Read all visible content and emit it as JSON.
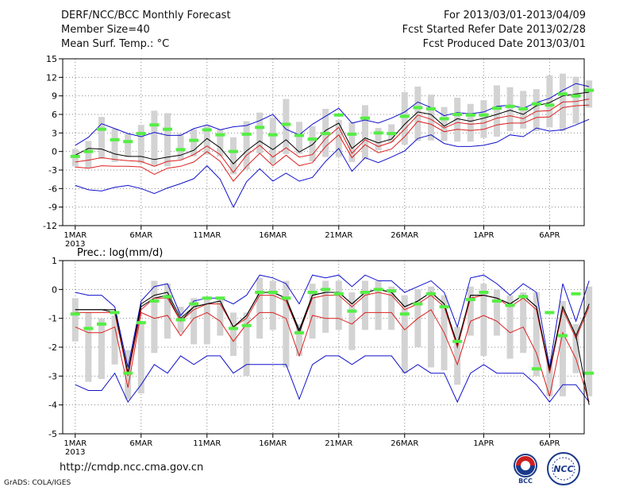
{
  "header": {
    "title": "DERF/NCC/BCC Monthly Forecast",
    "member": "Member Size=40",
    "variable": "Mean Surf. Temp.: °C",
    "period": "For 2013/03/01-2013/04/09",
    "started": "Fcst Started Refer Date 2013/02/28",
    "produced": "Fcst Produced Date 2013/03/01"
  },
  "footer": {
    "url": "http://cmdp.ncc.cma.gov.cn",
    "credit": "GrADS: COLA/IGES",
    "logo1_text": "BCC",
    "logo2_text": "NCC"
  },
  "colors": {
    "bar": "#d3d3d3",
    "marker": "#55ee44",
    "mean": "#000000",
    "inner": "#dd2020",
    "outer": "#1010cc",
    "grid": "#888888"
  },
  "chart_data": [
    {
      "type": "line",
      "title": "Mean Surf. Temp.: °C",
      "xlabel": "",
      "ylabel": "",
      "ylim": [
        -12,
        15
      ],
      "yticks": [
        -12,
        -9,
        -6,
        -3,
        0,
        3,
        6,
        9,
        12,
        15
      ],
      "xticks": [
        {
          "day": 1,
          "label": "1MAR",
          "sublabel": "2013"
        },
        {
          "day": 6,
          "label": "6MAR"
        },
        {
          "day": 11,
          "label": "11MAR"
        },
        {
          "day": 16,
          "label": "16MAR"
        },
        {
          "day": 21,
          "label": "21MAR"
        },
        {
          "day": 26,
          "label": "26MAR"
        },
        {
          "day": 32,
          "label": "1APR"
        },
        {
          "day": 37,
          "label": "6APR"
        }
      ],
      "x": [
        1,
        2,
        3,
        4,
        5,
        6,
        7,
        8,
        9,
        10,
        11,
        12,
        13,
        14,
        15,
        16,
        17,
        18,
        19,
        20,
        21,
        22,
        23,
        24,
        25,
        26,
        27,
        28,
        29,
        30,
        31,
        32,
        33,
        34,
        35,
        36,
        37,
        38,
        39,
        40
      ],
      "series": [
        {
          "name": "ensemble max",
          "values": [
            1.0,
            2.3,
            4.5,
            3.7,
            2.9,
            2.4,
            3.1,
            2.6,
            2.6,
            3.7,
            4.3,
            3.5,
            4.0,
            4.2,
            5.0,
            6.0,
            3.6,
            2.7,
            4.4,
            5.7,
            7.0,
            4.6,
            5.1,
            4.6,
            5.4,
            6.4,
            8.0,
            7.1,
            5.8,
            6.3,
            6.1,
            6.4,
            7.3,
            7.5,
            7.0,
            7.9,
            8.6,
            9.9,
            11.0,
            10.5
          ]
        },
        {
          "name": "upper",
          "values": [
            -0.6,
            0.5,
            0.4,
            -0.4,
            -0.8,
            -0.8,
            -1.3,
            -0.9,
            -0.6,
            0.2,
            2.1,
            0.6,
            -2.0,
            0.1,
            1.7,
            0.3,
            1.9,
            -0.1,
            1.1,
            3.4,
            4.6,
            0.5,
            2.2,
            1.4,
            2.0,
            4.4,
            6.4,
            6.0,
            4.1,
            5.3,
            4.9,
            5.4,
            6.0,
            6.7,
            6.0,
            7.4,
            7.9,
            9.0,
            9.3,
            9.6
          ]
        },
        {
          "name": "ensemble mean",
          "values": [
            -1.7,
            -1.4,
            -1.0,
            -1.3,
            -1.5,
            -1.6,
            -2.4,
            -1.6,
            -1.4,
            -0.5,
            0.9,
            -0.5,
            -3.4,
            -0.6,
            1.0,
            -0.9,
            0.6,
            -0.9,
            -0.5,
            2.1,
            3.9,
            -0.3,
            1.9,
            0.8,
            1.5,
            3.6,
            5.9,
            5.2,
            3.8,
            4.7,
            4.4,
            4.6,
            5.4,
            5.8,
            5.3,
            6.5,
            6.6,
            8.0,
            8.1,
            8.5
          ]
        },
        {
          "name": "lower",
          "values": [
            -2.5,
            -2.7,
            -2.3,
            -2.4,
            -2.4,
            -2.5,
            -3.7,
            -2.7,
            -2.4,
            -1.7,
            0.0,
            -1.6,
            -4.8,
            -2.4,
            -0.3,
            -2.3,
            -0.6,
            -2.3,
            -1.8,
            0.8,
            2.7,
            -1.0,
            1.1,
            -0.2,
            0.4,
            2.4,
            4.9,
            4.4,
            3.2,
            3.6,
            3.4,
            3.6,
            4.3,
            4.6,
            4.6,
            5.5,
            5.6,
            7.1,
            7.4,
            7.5
          ]
        },
        {
          "name": "ensemble min",
          "values": [
            -5.5,
            -6.2,
            -6.4,
            -5.8,
            -5.5,
            -6.0,
            -6.8,
            -5.9,
            -5.2,
            -4.4,
            -2.3,
            -4.5,
            -9.0,
            -4.9,
            -2.8,
            -4.8,
            -3.5,
            -4.8,
            -4.2,
            -1.6,
            0.5,
            -3.2,
            -1.0,
            -1.8,
            -0.9,
            0.1,
            2.1,
            2.7,
            1.3,
            0.8,
            0.8,
            1.0,
            1.5,
            2.7,
            2.4,
            3.8,
            3.3,
            3.5,
            4.3,
            5.2
          ]
        }
      ],
      "bars": [
        [
          -2.4,
          0.4
        ],
        [
          -2.7,
          1.7
        ],
        [
          -1.2,
          5.6
        ],
        [
          -1.7,
          3.7
        ],
        [
          -0.8,
          2.9
        ],
        [
          -1.9,
          4.3
        ],
        [
          -2.4,
          6.6
        ],
        [
          -2.4,
          6.2
        ],
        [
          -1.3,
          2.9
        ],
        [
          -0.8,
          3.6
        ],
        [
          -0.5,
          4.2
        ],
        [
          -0.8,
          3.6
        ],
        [
          -3.7,
          2.3
        ],
        [
          -2.9,
          4.9
        ],
        [
          -0.3,
          6.3
        ],
        [
          -2.0,
          5.5
        ],
        [
          -0.4,
          8.5
        ],
        [
          -0.4,
          4.8
        ],
        [
          -1.6,
          4.1
        ],
        [
          -0.9,
          6.9
        ],
        [
          -0.9,
          5.1
        ],
        [
          -1.7,
          4.7
        ],
        [
          -1.3,
          7.5
        ],
        [
          0.2,
          3.8
        ],
        [
          1.5,
          4.4
        ],
        [
          1.1,
          9.6
        ],
        [
          1.7,
          10.5
        ],
        [
          1.8,
          9.2
        ],
        [
          1.7,
          7.2
        ],
        [
          1.6,
          8.7
        ],
        [
          1.6,
          7.7
        ],
        [
          2.2,
          8.3
        ],
        [
          2.4,
          10.7
        ],
        [
          3.3,
          10.4
        ],
        [
          3.7,
          9.8
        ],
        [
          3.3,
          10.1
        ],
        [
          3.9,
          12.3
        ],
        [
          3.3,
          12.6
        ],
        [
          4.5,
          12.1
        ],
        [
          7.1,
          11.5
        ]
      ],
      "markers": [
        -0.8,
        0.0,
        3.6,
        1.9,
        1.6,
        2.9,
        4.3,
        3.6,
        0.3,
        1.8,
        3.5,
        2.7,
        0.0,
        2.8,
        3.9,
        2.7,
        4.4,
        2.6,
        2.0,
        2.9,
        5.9,
        2.8,
        5.4,
        3.0,
        2.9,
        5.7,
        7.1,
        6.9,
        5.3,
        6.0,
        5.9,
        5.9,
        7.0,
        7.3,
        6.9,
        7.7,
        7.5,
        9.3,
        9.0,
        9.9
      ]
    },
    {
      "type": "line",
      "title": "Prec.: log(mm/d)",
      "xlabel": "",
      "ylabel": "",
      "ylim": [
        -5,
        1
      ],
      "yticks": [
        -5,
        -4,
        -3,
        -2,
        -1,
        0,
        1
      ],
      "xticks": [
        {
          "day": 1,
          "label": "1MAR",
          "sublabel": "2013"
        },
        {
          "day": 6,
          "label": "6MAR"
        },
        {
          "day": 11,
          "label": "11MAR"
        },
        {
          "day": 16,
          "label": "16MAR"
        },
        {
          "day": 21,
          "label": "21MAR"
        },
        {
          "day": 26,
          "label": "26MAR"
        },
        {
          "day": 32,
          "label": "1APR"
        },
        {
          "day": 37,
          "label": "6APR"
        }
      ],
      "x": [
        1,
        2,
        3,
        4,
        5,
        6,
        7,
        8,
        9,
        10,
        11,
        12,
        13,
        14,
        15,
        16,
        17,
        18,
        19,
        20,
        21,
        22,
        23,
        24,
        25,
        26,
        27,
        28,
        29,
        30,
        31,
        32,
        33,
        34,
        35,
        36,
        37,
        38,
        39,
        40
      ],
      "series": [
        {
          "name": "ensemble max",
          "values": [
            -0.1,
            -0.2,
            -0.2,
            -0.6,
            -2.7,
            -0.4,
            0.1,
            0.2,
            -0.9,
            -0.4,
            -0.3,
            -0.3,
            -0.5,
            -0.2,
            0.5,
            0.4,
            0.2,
            -0.5,
            0.5,
            0.4,
            0.5,
            0.1,
            0.5,
            0.3,
            0.3,
            -0.1,
            0.1,
            0.3,
            -0.1,
            -1.3,
            0.4,
            0.5,
            0.2,
            -0.2,
            0.2,
            -0.1,
            -2.7,
            0.2,
            -1.1,
            0.3
          ]
        },
        {
          "name": "upper",
          "values": [
            -0.7,
            -0.7,
            -0.7,
            -0.8,
            -2.9,
            -0.6,
            -0.3,
            -0.2,
            -1.1,
            -0.6,
            -0.5,
            -0.4,
            -1.3,
            -0.9,
            -0.1,
            -0.1,
            -0.3,
            -1.4,
            -0.2,
            -0.1,
            -0.1,
            -0.5,
            -0.1,
            0.0,
            -0.1,
            -0.6,
            -0.4,
            -0.1,
            -0.5,
            -2.0,
            -0.2,
            -0.2,
            -0.3,
            -0.5,
            -0.2,
            -0.6,
            -2.8,
            -0.6,
            -1.6,
            -0.5
          ]
        },
        {
          "name": "ensemble mean",
          "values": [
            -0.8,
            -0.8,
            -0.8,
            -0.8,
            -3.0,
            -0.7,
            -0.3,
            -0.3,
            -1.1,
            -0.7,
            -0.5,
            -0.5,
            -1.3,
            -1.0,
            -0.2,
            -0.2,
            -0.4,
            -1.5,
            -0.3,
            -0.2,
            -0.2,
            -0.6,
            -0.2,
            -0.1,
            -0.2,
            -0.7,
            -0.5,
            -0.2,
            -0.6,
            -2.0,
            -0.3,
            -0.2,
            -0.3,
            -0.6,
            -0.3,
            -0.7,
            -2.9,
            -0.7,
            -1.7,
            -0.6
          ]
        },
        {
          "name": "lower",
          "values": [
            -1.3,
            -1.5,
            -1.5,
            -1.3,
            -3.4,
            -0.8,
            -1.0,
            -0.9,
            -1.6,
            -1.0,
            -0.8,
            -1.1,
            -1.8,
            -1.2,
            -0.8,
            -0.8,
            -1.0,
            -2.3,
            -0.9,
            -1.0,
            -1.0,
            -1.2,
            -0.8,
            -0.8,
            -0.8,
            -1.4,
            -1.0,
            -0.7,
            -1.5,
            -2.6,
            -1.1,
            -0.9,
            -1.1,
            -1.5,
            -1.3,
            -2.2,
            -3.7,
            -1.5,
            -2.4,
            -3.9
          ]
        },
        {
          "name": "ensemble min",
          "values": [
            -3.3,
            -3.5,
            -3.5,
            -2.9,
            -3.9,
            -3.3,
            -2.6,
            -2.9,
            -2.3,
            -2.6,
            -2.3,
            -2.3,
            -2.9,
            -2.6,
            -2.6,
            -2.6,
            -2.6,
            -3.8,
            -2.6,
            -2.3,
            -2.3,
            -2.6,
            -2.3,
            -2.3,
            -2.3,
            -2.9,
            -2.6,
            -2.9,
            -2.9,
            -3.9,
            -2.9,
            -2.6,
            -2.9,
            -2.9,
            -2.9,
            -3.3,
            -3.9,
            -3.3,
            -3.3,
            -3.9
          ]
        },
        {
          "name": "reference",
          "values": [
            -0.7,
            -0.7,
            -0.7,
            -0.7,
            -2.9,
            -0.5,
            -0.2,
            -0.1,
            -1.0,
            -0.6,
            -0.5,
            -0.4,
            -1.3,
            -0.9,
            -0.1,
            -0.1,
            -0.3,
            -1.5,
            -0.2,
            -0.1,
            -0.1,
            -0.5,
            -0.1,
            0.0,
            -0.1,
            -0.6,
            -0.4,
            -0.1,
            -0.5,
            -1.9,
            -0.2,
            -0.2,
            -0.3,
            -0.5,
            -0.2,
            -0.6,
            -2.8,
            -0.6,
            -1.6,
            -4.0
          ]
        }
      ],
      "bars": [
        [
          -1.8,
          -0.3
        ],
        [
          -3.2,
          -0.8
        ],
        [
          -3.1,
          -1.0
        ],
        [
          -2.6,
          -0.9
        ],
        [
          -3.8,
          -2.1
        ],
        [
          -3.6,
          -1.1
        ],
        [
          -2.2,
          0.3
        ],
        [
          -1.7,
          0.2
        ],
        [
          -1.5,
          -0.6
        ],
        [
          -1.9,
          -0.3
        ],
        [
          -1.9,
          -0.3
        ],
        [
          -1.6,
          -0.3
        ],
        [
          -2.3,
          -0.8
        ],
        [
          -3.0,
          -0.8
        ],
        [
          -1.7,
          0.4
        ],
        [
          -1.4,
          0.3
        ],
        [
          -2.7,
          0.3
        ],
        [
          -2.3,
          -1.2
        ],
        [
          -1.7,
          0.2
        ],
        [
          -1.5,
          0.3
        ],
        [
          -1.4,
          0.3
        ],
        [
          -2.1,
          -0.1
        ],
        [
          -1.4,
          0.3
        ],
        [
          -1.4,
          0.3
        ],
        [
          -1.4,
          0.1
        ],
        [
          -2.9,
          -0.2
        ],
        [
          -2.0,
          0.0
        ],
        [
          -2.7,
          0.1
        ],
        [
          -2.8,
          -0.2
        ],
        [
          -3.3,
          -1.3
        ],
        [
          -1.6,
          0.1
        ],
        [
          -2.3,
          0.2
        ],
        [
          -1.6,
          0.0
        ],
        [
          -2.4,
          -0.2
        ],
        [
          -2.2,
          -0.1
        ],
        [
          -3.0,
          -0.1
        ],
        [
          -3.7,
          -2.4
        ],
        [
          -3.7,
          -0.4
        ],
        [
          -2.9,
          -1.2
        ],
        [
          -3.7,
          0.1
        ]
      ],
      "markers": [
        -0.85,
        -1.35,
        -1.2,
        -0.8,
        -2.9,
        -1.15,
        -0.4,
        -0.25,
        -1.05,
        -0.5,
        -0.3,
        -0.3,
        -1.35,
        -1.25,
        -0.1,
        -0.1,
        -0.3,
        -1.5,
        -0.1,
        0.0,
        -0.15,
        -0.75,
        -0.1,
        0.0,
        -0.05,
        -0.85,
        -0.5,
        -0.15,
        -0.6,
        -1.8,
        -0.35,
        -0.1,
        -0.4,
        -0.55,
        -0.25,
        -2.75,
        -0.8,
        -1.6,
        -0.15,
        -2.9
      ]
    }
  ]
}
